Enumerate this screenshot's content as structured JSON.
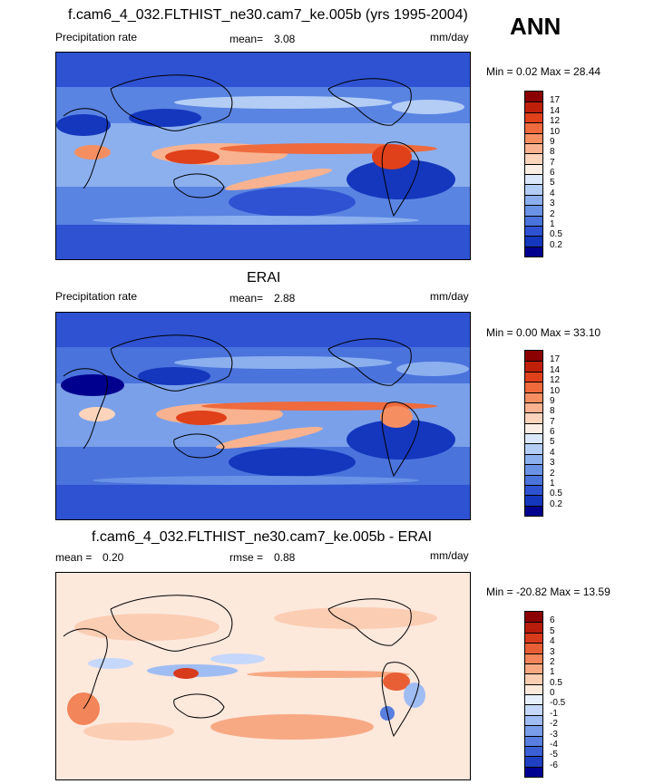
{
  "season": "ANN",
  "panels": [
    {
      "title": "f.cam6_4_032.FLTHIST_ne30.cam7_ke.005b (yrs 1995-2004)",
      "variable": "Precipitation rate",
      "stat1_label": "mean=",
      "stat1_value": "3.08",
      "units": "mm/day",
      "minmax": "Min =   0.02 Max =  28.44",
      "colorbar_labels": [
        "17",
        "14",
        "12",
        "10",
        "9",
        "8",
        "7",
        "6",
        "5",
        "4",
        "3",
        "2",
        "1",
        "0.5",
        "0.2"
      ],
      "colorbar_colors": [
        "#8b0000",
        "#c0200a",
        "#e0401a",
        "#ef6a3c",
        "#f58f62",
        "#f9b28f",
        "#fcd4bb",
        "#fbeee4",
        "#dbe8fb",
        "#b3cdf5",
        "#8cb0ee",
        "#6a93e6",
        "#4a73dc",
        "#2e52d2",
        "#1437bd",
        "#00008e"
      ]
    },
    {
      "title": "ERAI",
      "variable": "Precipitation rate",
      "stat1_label": "mean=",
      "stat1_value": "2.88",
      "units": "mm/day",
      "minmax": "Min =   0.00 Max =  33.10",
      "colorbar_labels": [
        "17",
        "14",
        "12",
        "10",
        "9",
        "8",
        "7",
        "6",
        "5",
        "4",
        "3",
        "2",
        "1",
        "0.5",
        "0.2"
      ],
      "colorbar_colors": [
        "#8b0000",
        "#c0200a",
        "#e0401a",
        "#ef6a3c",
        "#f58f62",
        "#f9b28f",
        "#fcd4bb",
        "#fbeee4",
        "#dbe8fb",
        "#b3cdf5",
        "#8cb0ee",
        "#6a93e6",
        "#4a73dc",
        "#2e52d2",
        "#1437bd",
        "#00008e"
      ]
    },
    {
      "title": "f.cam6_4_032.FLTHIST_ne30.cam7_ke.005b - ERAI",
      "stat1_label": "mean =",
      "stat1_value": "0.20",
      "stat2_label": "rmse =",
      "stat2_value": "0.88",
      "units": "mm/day",
      "minmax": "Min = -20.82 Max =  13.59",
      "colorbar_labels": [
        "6",
        "5",
        "4",
        "3",
        "2",
        "1",
        "0.5",
        "0",
        "-0.5",
        "-1",
        "-2",
        "-3",
        "-4",
        "-5",
        "-6"
      ],
      "colorbar_colors": [
        "#8b0000",
        "#b81d0c",
        "#d83a1c",
        "#e85f36",
        "#f28559",
        "#f7a983",
        "#fbcdb3",
        "#fde8dc",
        "#e5efff",
        "#c5d8fb",
        "#9fbcf3",
        "#7a9de9",
        "#587fe0",
        "#3b5fd5",
        "#1f40c2",
        "#000091"
      ]
    }
  ]
}
